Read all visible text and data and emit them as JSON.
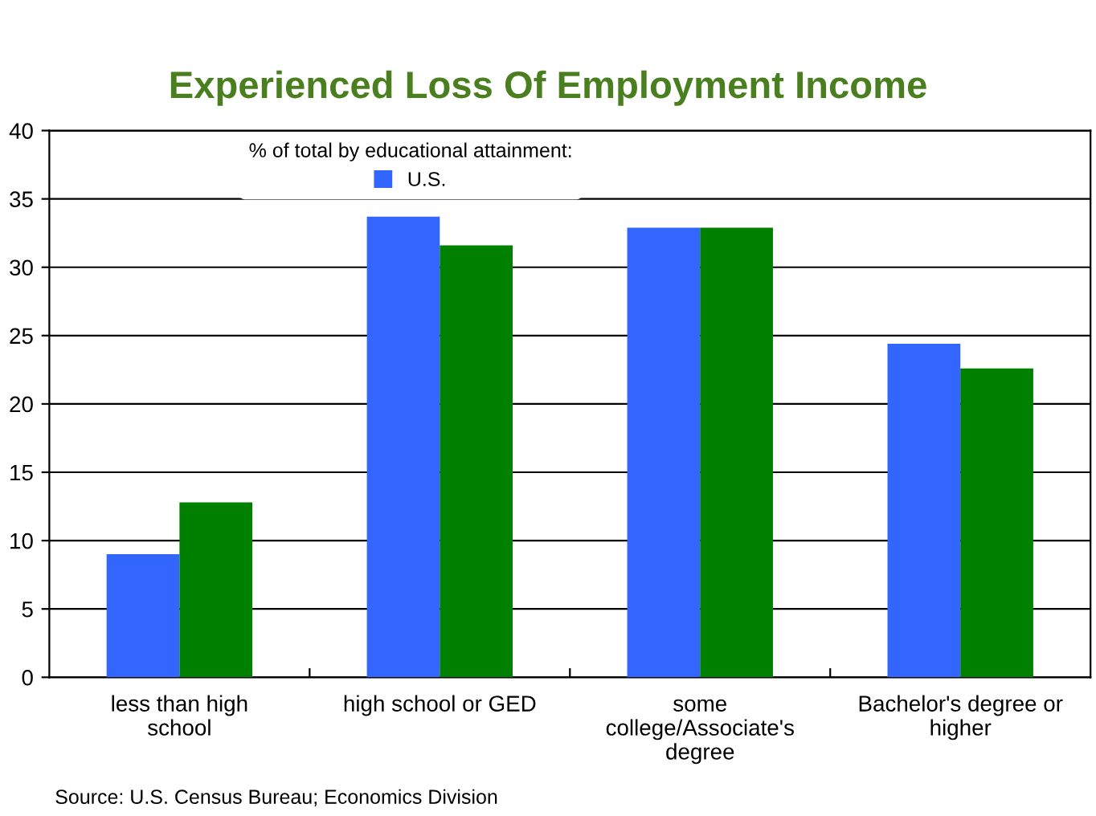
{
  "chart_data": {
    "type": "bar",
    "title": "Experienced Loss Of Employment Income",
    "legend_title": "% of total by educational attainment:",
    "categories": [
      "less than high school",
      "high school or GED",
      "some college/Associate's degree",
      "Bachelor's degree or higher"
    ],
    "series": [
      {
        "name": "U.S.",
        "color": "#3366ff",
        "values": [
          9.0,
          33.7,
          32.9,
          24.4
        ]
      },
      {
        "color": "#008000",
        "values": [
          12.8,
          31.6,
          32.9,
          22.6
        ]
      }
    ],
    "ylim": [
      0,
      40
    ],
    "yticks": [
      0,
      5,
      10,
      15,
      20,
      25,
      30,
      35,
      40
    ],
    "grid": "y",
    "legend": "top left",
    "annotations": [
      "Source: U.S. Census Bureau; Economics Division"
    ]
  }
}
